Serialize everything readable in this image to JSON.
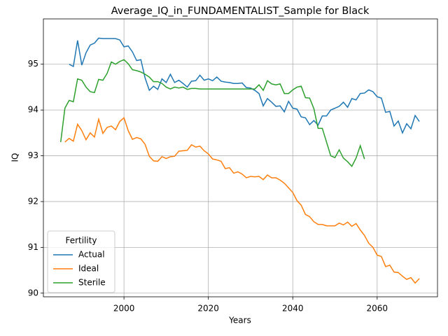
{
  "chart_data": {
    "type": "line",
    "title": "Average_IQ_in_FUNDAMENTALIST_Sample for Black",
    "xlabel": "Years",
    "ylabel": "IQ",
    "legend_title": "Fertility",
    "legend": "lower left",
    "grid": true,
    "xlim": [
      1980.9,
      2074.3
    ],
    "xticks": [
      2000,
      2020,
      2040,
      2060
    ],
    "ylim": [
      89.92,
      95.99
    ],
    "yticks": [
      90,
      91,
      92,
      93,
      94,
      95
    ],
    "series": [
      {
        "name": "Actual",
        "color": "#1f77b4",
        "x": [
          1987,
          1988,
          1989,
          1990,
          1991,
          1992,
          1993,
          1994,
          1995,
          1996,
          1997,
          1998,
          1999,
          2000,
          2001,
          2002,
          2003,
          2004,
          2005,
          2006,
          2007,
          2008,
          2009,
          2010,
          2011,
          2012,
          2013,
          2014,
          2015,
          2016,
          2017,
          2018,
          2019,
          2020,
          2021,
          2022,
          2023,
          2024,
          2025,
          2026,
          2027,
          2028,
          2029,
          2030,
          2031,
          2032,
          2033,
          2034,
          2035,
          2036,
          2037,
          2038,
          2039,
          2040,
          2041,
          2042,
          2043,
          2044,
          2045,
          2046,
          2047,
          2048,
          2049,
          2050,
          2051,
          2052,
          2053,
          2054,
          2055,
          2056,
          2057,
          2058,
          2059,
          2060,
          2061,
          2062,
          2063,
          2064,
          2065,
          2066,
          2067,
          2068,
          2069,
          2070
        ],
        "values": [
          95.0,
          94.95,
          95.52,
          94.98,
          95.25,
          95.42,
          95.46,
          95.57,
          95.56,
          95.56,
          95.56,
          95.56,
          95.53,
          95.38,
          95.4,
          95.27,
          95.08,
          95.1,
          94.7,
          94.43,
          94.52,
          94.45,
          94.68,
          94.6,
          94.78,
          94.6,
          94.65,
          94.58,
          94.5,
          94.63,
          94.64,
          94.76,
          94.65,
          94.68,
          94.64,
          94.72,
          94.63,
          94.61,
          94.6,
          94.58,
          94.58,
          94.59,
          94.49,
          94.48,
          94.43,
          94.36,
          94.09,
          94.25,
          94.17,
          94.08,
          94.09,
          93.96,
          94.19,
          94.04,
          94.02,
          93.85,
          93.83,
          93.68,
          93.77,
          93.67,
          93.87,
          93.87,
          94.0,
          94.04,
          94.08,
          94.17,
          94.06,
          94.25,
          94.22,
          94.36,
          94.37,
          94.44,
          94.4,
          94.29,
          94.26,
          93.95,
          93.97,
          93.65,
          93.76,
          93.5,
          93.7,
          93.59,
          93.88,
          93.75
        ]
      },
      {
        "name": "Ideal",
        "color": "#ff7f0e",
        "x": [
          1986,
          1987,
          1988,
          1989,
          1990,
          1991,
          1992,
          1993,
          1994,
          1995,
          1996,
          1997,
          1998,
          1999,
          2000,
          2001,
          2002,
          2003,
          2004,
          2005,
          2006,
          2007,
          2008,
          2009,
          2010,
          2011,
          2012,
          2013,
          2014,
          2015,
          2016,
          2017,
          2018,
          2019,
          2020,
          2021,
          2022,
          2023,
          2024,
          2025,
          2026,
          2027,
          2028,
          2029,
          2030,
          2031,
          2032,
          2033,
          2034,
          2035,
          2036,
          2037,
          2038,
          2039,
          2040,
          2041,
          2042,
          2043,
          2044,
          2045,
          2046,
          2047,
          2048,
          2049,
          2050,
          2051,
          2052,
          2053,
          2054,
          2055,
          2056,
          2057,
          2058,
          2059,
          2060,
          2061,
          2062,
          2063,
          2064,
          2065,
          2066,
          2067,
          2068,
          2069,
          2070
        ],
        "values": [
          93.3,
          93.38,
          93.32,
          93.69,
          93.55,
          93.35,
          93.5,
          93.41,
          93.8,
          93.49,
          93.62,
          93.65,
          93.57,
          93.75,
          93.83,
          93.55,
          93.36,
          93.4,
          93.37,
          93.25,
          92.99,
          92.89,
          92.88,
          92.98,
          92.94,
          92.98,
          92.99,
          93.1,
          93.11,
          93.12,
          93.24,
          93.19,
          93.21,
          93.11,
          93.04,
          92.93,
          92.91,
          92.88,
          92.72,
          92.74,
          92.62,
          92.65,
          92.6,
          92.52,
          92.55,
          92.54,
          92.55,
          92.48,
          92.58,
          92.52,
          92.52,
          92.47,
          92.4,
          92.3,
          92.2,
          92.02,
          91.92,
          91.72,
          91.67,
          91.56,
          91.5,
          91.5,
          91.47,
          91.47,
          91.47,
          91.53,
          91.49,
          91.55,
          91.46,
          91.52,
          91.38,
          91.26,
          91.09,
          91.0,
          90.83,
          90.8,
          90.58,
          90.61,
          90.46,
          90.45,
          90.37,
          90.3,
          90.34,
          90.22,
          90.32
        ]
      },
      {
        "name": "Sterile",
        "color": "#2ca02c",
        "x": [
          1985,
          1986,
          1987,
          1988,
          1989,
          1990,
          1991,
          1992,
          1993,
          1994,
          1995,
          1996,
          1997,
          1998,
          1999,
          2000,
          2001,
          2002,
          2003,
          2004,
          2005,
          2006,
          2007,
          2008,
          2009,
          2010,
          2011,
          2012,
          2013,
          2014,
          2015,
          2016,
          2017,
          2018,
          2019,
          2020,
          2021,
          2022,
          2023,
          2024,
          2025,
          2026,
          2027,
          2028,
          2029,
          2030,
          2031,
          2032,
          2033,
          2034,
          2035,
          2036,
          2037,
          2038,
          2039,
          2040,
          2041,
          2042,
          2043,
          2044,
          2045,
          2046,
          2047,
          2048,
          2049,
          2050,
          2051,
          2052,
          2053,
          2054,
          2055,
          2056,
          2057
        ],
        "values": [
          93.3,
          94.04,
          94.21,
          94.18,
          94.68,
          94.65,
          94.5,
          94.4,
          94.38,
          94.67,
          94.65,
          94.8,
          95.05,
          95.0,
          95.06,
          95.1,
          95.01,
          94.88,
          94.86,
          94.83,
          94.78,
          94.72,
          94.62,
          94.62,
          94.58,
          94.5,
          94.46,
          94.5,
          94.48,
          94.5,
          94.45,
          94.47,
          94.47,
          94.46,
          94.46,
          94.46,
          94.46,
          94.46,
          94.46,
          94.46,
          94.46,
          94.46,
          94.46,
          94.46,
          94.46,
          94.46,
          94.46,
          94.55,
          94.43,
          94.64,
          94.57,
          94.55,
          94.57,
          94.36,
          94.36,
          94.44,
          94.5,
          94.52,
          94.27,
          94.26,
          94.03,
          93.6,
          93.6,
          93.3,
          93.0,
          92.96,
          93.13,
          92.95,
          92.87,
          92.77,
          92.95,
          93.22,
          92.93
        ]
      }
    ]
  }
}
